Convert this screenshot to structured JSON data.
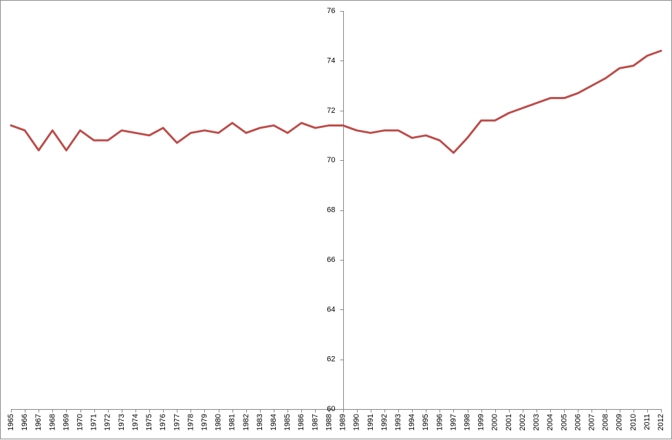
{
  "chart_data": {
    "type": "line",
    "title": "",
    "xlabel": "",
    "ylabel": "",
    "x": [
      1965,
      1966,
      1967,
      1968,
      1969,
      1970,
      1971,
      1972,
      1973,
      1974,
      1975,
      1976,
      1977,
      1978,
      1979,
      1980,
      1981,
      1982,
      1983,
      1984,
      1985,
      1986,
      1987,
      1988,
      1989,
      1990,
      1991,
      1992,
      1993,
      1994,
      1995,
      1996,
      1997,
      1998,
      1999,
      2000,
      2001,
      2002,
      2003,
      2004,
      2005,
      2006,
      2007,
      2008,
      2009,
      2010,
      2011,
      2012
    ],
    "x_tick_labels": [
      "1965",
      "1966",
      "1967",
      "1968",
      "1969",
      "1970",
      "1971",
      "1972",
      "1973",
      "1974",
      "1975",
      "1976",
      "1977",
      "1978",
      "1979",
      "1980",
      "1981",
      "1982",
      "1983",
      "1984",
      "1985",
      "1986",
      "1987",
      "1988",
      "1989",
      "1990",
      "1991",
      "1992",
      "1993",
      "1994",
      "1995",
      "1996",
      "1997",
      "1998",
      "1999",
      "2000",
      "2001",
      "2002",
      "2003",
      "2004",
      "2005",
      "2006",
      "2007",
      "2008",
      "2009",
      "2010",
      "2011",
      "2012"
    ],
    "series": [
      {
        "color": "#be4b48",
        "values": [
          71.4,
          71.2,
          70.4,
          71.2,
          70.4,
          71.2,
          70.8,
          70.8,
          71.2,
          71.1,
          71.0,
          71.3,
          70.7,
          71.1,
          71.2,
          71.1,
          71.5,
          71.1,
          71.3,
          71.4,
          71.1,
          71.5,
          71.3,
          71.4,
          71.4,
          71.2,
          71.1,
          71.2,
          71.2,
          70.9,
          71.0,
          70.8,
          70.3,
          70.9,
          71.6,
          71.6,
          71.9,
          72.1,
          72.3,
          72.5,
          72.5,
          72.7,
          73.0,
          73.3,
          73.7,
          73.8,
          74.2,
          74.4
        ]
      }
    ],
    "ylim": [
      60,
      76
    ],
    "y_ticks": [
      60,
      62,
      64,
      66,
      68,
      70,
      72,
      74,
      76
    ],
    "y_axis_at_x": 1989,
    "grid": false,
    "legend": "none"
  }
}
